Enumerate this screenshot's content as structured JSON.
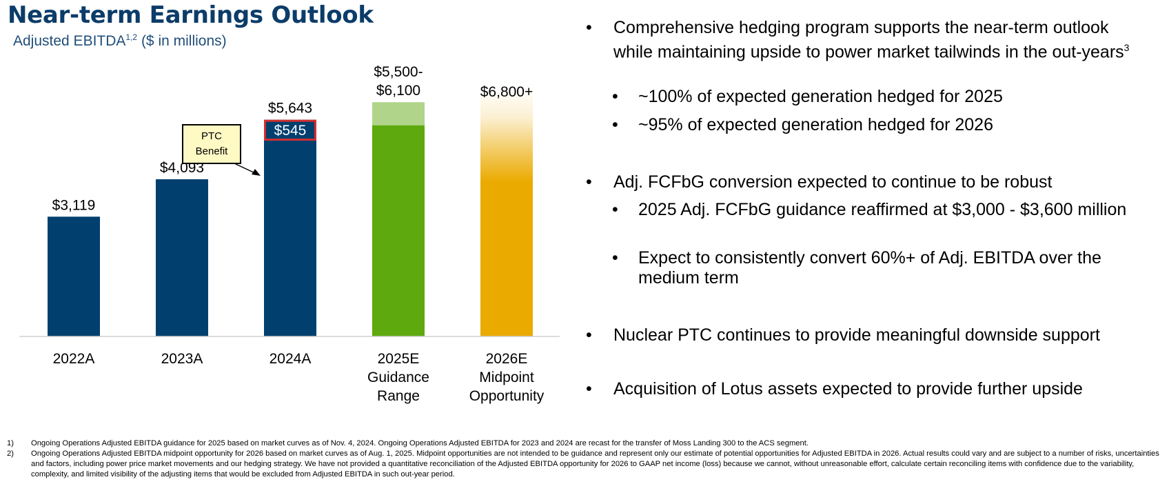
{
  "title": "Near-term Earnings Outlook",
  "subtitle": {
    "main": "Adjusted EBITDA",
    "sup": "1,2",
    "rest": "($ in millions)"
  },
  "chart_data": {
    "type": "bar",
    "categories": [
      [
        "2022A"
      ],
      [
        "2023A"
      ],
      [
        "2024A"
      ],
      [
        "2025E",
        "Guidance",
        "Range"
      ],
      [
        "2026E",
        "Midpoint",
        "Opportunity"
      ]
    ],
    "values": [
      3119,
      4093,
      5643,
      [
        5500,
        6100
      ],
      6800
    ],
    "value_labels": [
      "$3,119",
      "$4,093",
      "$5,643",
      "$5,500-\n$6,100",
      "$6,800+"
    ],
    "segment": {
      "bar_index": 2,
      "value": 545,
      "label": "$545"
    },
    "callout": {
      "line1": "PTC",
      "line2": "Benefit"
    },
    "colors": {
      "actual": "#003f6e",
      "guidance_low": "#5ea90e",
      "guidance_range": "#b0d58a",
      "opportunity": "#ebaa00",
      "segment_border": "#d32f2f",
      "callout_fill": "#fff9c4"
    }
  },
  "bullets": [
    {
      "level": 1,
      "text": "Comprehensive hedging program supports the near-term outlook while maintaining upside to power market tailwinds in the out-years",
      "sup": "3"
    },
    {
      "level": 2,
      "text": "~100% of expected generation hedged for 2025"
    },
    {
      "level": 2,
      "text": "~95% of expected generation hedged for 2026"
    },
    {
      "level": 1,
      "text": "Adj. FCFbG conversion expected to continue to be robust"
    },
    {
      "level": 2,
      "text": "2025 Adj. FCFbG guidance reaffirmed at $3,000 - $3,600 million"
    },
    {
      "level": 2,
      "text": "Expect to consistently convert 60%+ of Adj. EBITDA over the medium term"
    },
    {
      "level": 1,
      "text": "Nuclear PTC continues to provide meaningful downside support"
    },
    {
      "level": 1,
      "text": "Acquisition of Lotus assets expected to provide further upside"
    }
  ],
  "bullet_glyph": "•",
  "footnotes": [
    {
      "num": "1)",
      "text": "Ongoing Operations Adjusted EBITDA guidance for 2025 based on market curves as of Nov. 4, 2024. Ongoing Operations Adjusted EBITDA for 2023 and 2024 are recast for the transfer of Moss Landing 300 to the ACS segment."
    },
    {
      "num": "2)",
      "text": "Ongoing Operations Adjusted EBITDA midpoint opportunity for 2026 based on market curves as of Aug. 1, 2025. Midpoint opportunities are not intended to be guidance and represent only our estimate of potential opportunities for Adjusted EBITDA in 2026. Actual results could vary and are subject to a number of risks, uncertainties and factors, including power price market movements and our hedging strategy. We have not provided a quantitative reconciliation of the Adjusted EBITDA opportunity for 2026 to GAAP net income (loss) because we cannot, without unreasonable effort, calculate certain reconciling items with confidence due to the variability, complexity, and limited visibility of the adjusting items that would be excluded from Adjusted EBITDA in such out-year period."
    }
  ]
}
